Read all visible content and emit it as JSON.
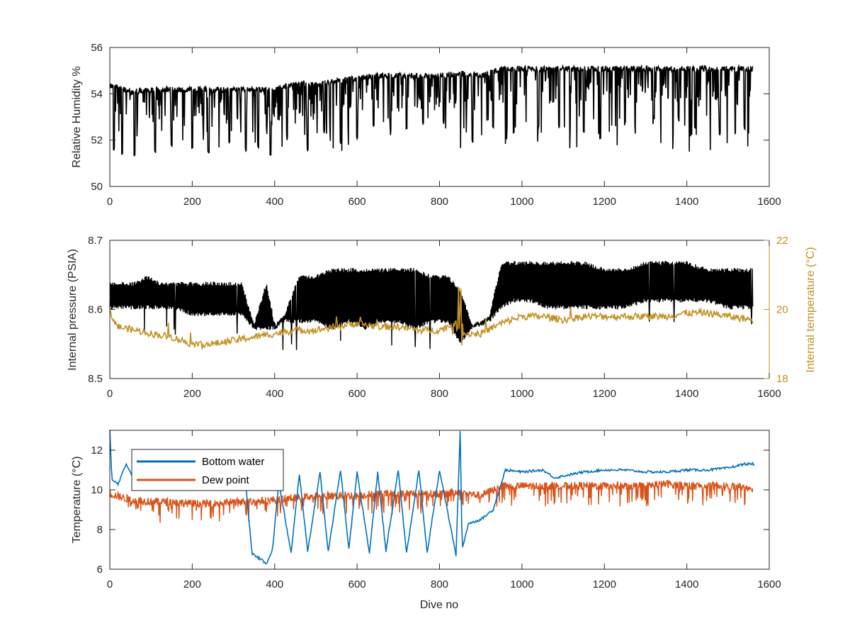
{
  "chart_data": [
    {
      "type": "line",
      "title": "",
      "xlabel": "",
      "ylabel": "Relative Humidity %",
      "xlim": [
        0,
        1600
      ],
      "ylim": [
        50,
        56
      ],
      "xticks": [
        "0",
        "200",
        "400",
        "600",
        "800",
        "1000",
        "1200",
        "1400",
        "1600"
      ],
      "yticks": [
        "50",
        "52",
        "54",
        "56"
      ],
      "grid": false,
      "series": [
        {
          "color": "#000000",
          "x": [
            0,
            50,
            100,
            150,
            200,
            250,
            300,
            350,
            400,
            450,
            500,
            550,
            600,
            650,
            700,
            750,
            800,
            850,
            900,
            950,
            1000,
            1050,
            1100,
            1150,
            1200,
            1250,
            1300,
            1350,
            1400,
            1450,
            1500,
            1560
          ],
          "y": [
            54.5,
            54.2,
            54.3,
            54.3,
            54.3,
            54.3,
            54.3,
            54.3,
            54.3,
            54.6,
            54.5,
            54.7,
            54.8,
            54.9,
            54.9,
            54.9,
            54.9,
            55.0,
            54.9,
            55.2,
            55.2,
            55.2,
            55.2,
            55.2,
            55.2,
            55.2,
            55.2,
            55.2,
            55.2,
            55.2,
            55.2,
            55.2
          ],
          "dips": [
            [
              10,
              51.5
            ],
            [
              30,
              51.3
            ],
            [
              60,
              51.3
            ],
            [
              110,
              51.4
            ],
            [
              150,
              51.7
            ],
            [
              200,
              51.6
            ],
            [
              240,
              51.4
            ],
            [
              290,
              51.8
            ],
            [
              330,
              51.5
            ],
            [
              360,
              51.6
            ],
            [
              390,
              51.2
            ],
            [
              430,
              52.1
            ],
            [
              480,
              51.5
            ],
            [
              520,
              52.3
            ],
            [
              560,
              51.8
            ],
            [
              600,
              52.0
            ],
            [
              640,
              52.5
            ],
            [
              680,
              52.2
            ],
            [
              720,
              52.4
            ],
            [
              760,
              52.6
            ],
            [
              810,
              52.8
            ],
            [
              880,
              51.9
            ],
            [
              930,
              52.4
            ],
            [
              980,
              52.3
            ],
            [
              1040,
              52.4
            ],
            [
              1090,
              52.5
            ],
            [
              1150,
              52.3
            ],
            [
              1190,
              52.0
            ],
            [
              1250,
              52.6
            ],
            [
              1320,
              52.9
            ],
            [
              1380,
              52.8
            ],
            [
              1420,
              52.4
            ],
            [
              1480,
              52.2
            ],
            [
              1540,
              52.4
            ]
          ]
        }
      ]
    },
    {
      "type": "line",
      "title": "",
      "xlabel": "",
      "ylabel": "Internal pressure (PSIA)",
      "ylabel_right": "Internal temperature (°C)",
      "xlim": [
        0,
        1600
      ],
      "ylim": [
        8.5,
        8.7
      ],
      "ylim_right": [
        18,
        22
      ],
      "xticks": [
        "0",
        "200",
        "400",
        "600",
        "800",
        "1000",
        "1200",
        "1400",
        "1600"
      ],
      "yticks": [
        "8.5",
        "8.6",
        "8.7"
      ],
      "yticks_right": [
        "18",
        "20",
        "22"
      ],
      "grid": false,
      "series": [
        {
          "axis": "left",
          "color": "#000000",
          "x": [
            0,
            30,
            60,
            90,
            120,
            160,
            200,
            240,
            280,
            320,
            350,
            380,
            400,
            420,
            460,
            500,
            540,
            580,
            620,
            660,
            700,
            740,
            780,
            820,
            850,
            880,
            920,
            950,
            980,
            1020,
            1060,
            1100,
            1150,
            1200,
            1250,
            1300,
            1350,
            1400,
            1450,
            1500,
            1560
          ],
          "low": [
            8.6,
            8.6,
            8.6,
            8.6,
            8.6,
            8.6,
            8.59,
            8.59,
            8.59,
            8.59,
            8.57,
            8.57,
            8.57,
            8.58,
            8.58,
            8.58,
            8.57,
            8.58,
            8.57,
            8.58,
            8.58,
            8.57,
            8.58,
            8.58,
            8.55,
            8.57,
            8.58,
            8.6,
            8.61,
            8.61,
            8.6,
            8.6,
            8.6,
            8.6,
            8.6,
            8.61,
            8.61,
            8.61,
            8.61,
            8.6,
            8.6
          ],
          "high": [
            8.64,
            8.64,
            8.64,
            8.65,
            8.64,
            8.64,
            8.64,
            8.64,
            8.64,
            8.64,
            8.58,
            8.64,
            8.58,
            8.59,
            8.65,
            8.65,
            8.66,
            8.66,
            8.66,
            8.66,
            8.66,
            8.66,
            8.65,
            8.65,
            8.63,
            8.58,
            8.59,
            8.67,
            8.67,
            8.67,
            8.67,
            8.67,
            8.67,
            8.66,
            8.66,
            8.67,
            8.67,
            8.67,
            8.66,
            8.66,
            8.66
          ]
        },
        {
          "axis": "right",
          "color": "#C39022",
          "x": [
            0,
            20,
            60,
            100,
            150,
            200,
            250,
            300,
            350,
            400,
            450,
            500,
            550,
            600,
            650,
            700,
            750,
            800,
            840,
            850,
            860,
            900,
            950,
            1000,
            1050,
            1100,
            1150,
            1200,
            1250,
            1300,
            1350,
            1400,
            1450,
            1500,
            1560
          ],
          "y": [
            19.9,
            19.5,
            19.4,
            19.3,
            19.2,
            19.0,
            19.0,
            19.1,
            19.2,
            19.3,
            19.4,
            19.4,
            19.5,
            19.6,
            19.5,
            19.5,
            19.4,
            19.4,
            19.6,
            19.0,
            19.3,
            19.3,
            19.6,
            19.8,
            19.8,
            19.7,
            19.8,
            19.8,
            19.8,
            19.8,
            19.8,
            19.9,
            19.9,
            19.8,
            19.7
          ]
        }
      ]
    },
    {
      "type": "line",
      "title": "",
      "xlabel": "Dive no",
      "ylabel": "Temperature (°C)",
      "xlim": [
        0,
        1600
      ],
      "ylim": [
        6,
        13
      ],
      "xticks": [
        "0",
        "200",
        "400",
        "600",
        "800",
        "1000",
        "1200",
        "1400",
        "1600"
      ],
      "yticks": [
        "6",
        "8",
        "10",
        "12"
      ],
      "grid": false,
      "legend_position": "top-left",
      "series": [
        {
          "name": "Bottom water",
          "color": "#0072BD",
          "x": [
            0,
            5,
            20,
            40,
            60,
            100,
            150,
            200,
            250,
            300,
            330,
            345,
            380,
            395,
            410,
            440,
            460,
            480,
            510,
            530,
            560,
            580,
            600,
            630,
            650,
            670,
            700,
            720,
            750,
            770,
            800,
            840,
            850,
            855,
            870,
            900,
            930,
            960,
            1000,
            1050,
            1080,
            1100,
            1150,
            1200,
            1250,
            1300,
            1350,
            1400,
            1450,
            1500,
            1540,
            1565
          ],
          "y": [
            13.0,
            10.5,
            10.3,
            11.3,
            10.5,
            10.3,
            10.2,
            10.2,
            10.2,
            10.2,
            10.3,
            6.8,
            6.3,
            7.0,
            10.4,
            6.8,
            10.8,
            6.9,
            10.9,
            6.9,
            11.0,
            7.0,
            10.9,
            6.8,
            10.9,
            6.9,
            11.0,
            6.8,
            11.0,
            6.8,
            11.0,
            6.7,
            12.9,
            7.0,
            8.3,
            8.5,
            9.0,
            11.0,
            10.9,
            11.0,
            10.6,
            10.7,
            10.9,
            11.0,
            11.0,
            10.9,
            10.9,
            11.0,
            11.0,
            11.1,
            11.3,
            11.3
          ]
        },
        {
          "name": "Dew point",
          "color": "#D95319",
          "x": [
            0,
            50,
            100,
            150,
            200,
            250,
            300,
            350,
            400,
            450,
            500,
            550,
            600,
            650,
            700,
            750,
            800,
            850,
            900,
            950,
            1000,
            1050,
            1100,
            1150,
            1200,
            1250,
            1300,
            1350,
            1400,
            1450,
            1500,
            1560
          ],
          "y": [
            9.8,
            9.5,
            9.4,
            9.4,
            9.3,
            9.3,
            9.4,
            9.4,
            9.5,
            9.6,
            9.7,
            9.7,
            9.7,
            9.8,
            9.8,
            9.8,
            9.8,
            9.9,
            9.7,
            10.2,
            10.2,
            10.2,
            10.2,
            10.2,
            10.2,
            10.2,
            10.2,
            10.3,
            10.2,
            10.2,
            10.2,
            10.1
          ]
        }
      ]
    }
  ]
}
